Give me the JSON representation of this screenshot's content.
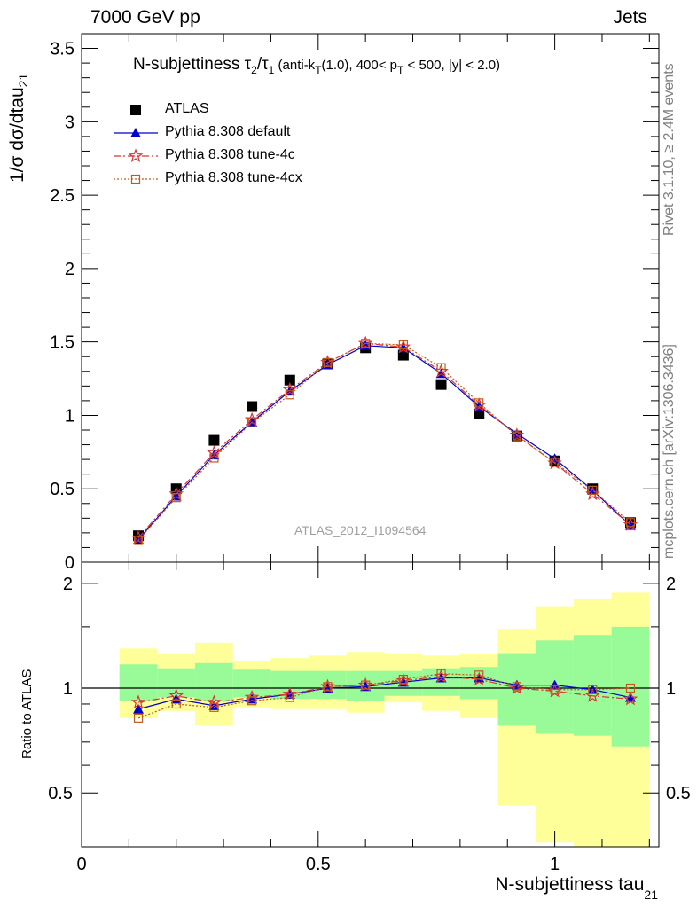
{
  "header": {
    "left": "7000 GeV pp",
    "right": "Jets"
  },
  "side_labels": {
    "rivet": "Rivet 3.1.10, ≥ 2.4M events",
    "mcplots": "mcplots.cern.ch [arXiv:1306.3436]"
  },
  "watermark": "ATLAS_2012_I1094564",
  "title": {
    "main": "N-subjettiness τ",
    "sub1": "2",
    "slash": "/τ",
    "sub2": "1",
    "detail_a": " (anti-k",
    "detail_sub": "T",
    "detail_b": "(1.0), 400< p",
    "detail_sub2": "T",
    "detail_c": " < 500, |y| < 2.0)"
  },
  "axes": {
    "ylabel_main_a": "1/σ dσ/dtau",
    "ylabel_main_sub": "21",
    "ylabel_ratio": "Ratio to ATLAS",
    "xlabel_a": "N-subjettiness tau",
    "xlabel_sub": "21"
  },
  "legend": [
    {
      "label": "ATLAS"
    },
    {
      "label": "Pythia 8.308 default"
    },
    {
      "label": "Pythia 8.308 tune-4c"
    },
    {
      "label": "Pythia 8.308 tune-4cx"
    }
  ],
  "colors": {
    "data": "#000000",
    "default": "#0000cc",
    "tune4c": "#dd3333",
    "tune4cx": "#c05a1c",
    "band_inner": "#98fb98",
    "band_outer": "#ffff99"
  },
  "chart_data": [
    {
      "type": "scatter",
      "panel": "main",
      "xlim": [
        0,
        1.22
      ],
      "ylim": [
        0,
        3.6
      ],
      "x_ticks": [
        0,
        0.5,
        1
      ],
      "y_ticks": [
        0,
        0.5,
        1,
        1.5,
        2,
        2.5,
        3,
        3.5
      ],
      "y_tick_labels": [
        "0",
        "0.5",
        "1",
        "1.5",
        "2",
        "2.5",
        "3",
        "3.5"
      ],
      "x": [
        0.12,
        0.2,
        0.28,
        0.36,
        0.44,
        0.52,
        0.6,
        0.68,
        0.76,
        0.84,
        0.92,
        1.0,
        1.08,
        1.16
      ],
      "series": [
        {
          "name": "ATLAS",
          "style": "data",
          "values": [
            0.18,
            0.5,
            0.83,
            1.06,
            1.24,
            1.35,
            1.46,
            1.41,
            1.21,
            1.01,
            0.86,
            0.69,
            0.5,
            0.27
          ]
        },
        {
          "name": "Pythia 8.308 default",
          "style": "default",
          "values": [
            0.155,
            0.45,
            0.73,
            0.955,
            1.165,
            1.345,
            1.475,
            1.46,
            1.285,
            1.06,
            0.875,
            0.705,
            0.49,
            0.25
          ]
        },
        {
          "name": "Pythia 8.308 tune-4c",
          "style": "tune4c",
          "values": [
            0.165,
            0.465,
            0.745,
            0.97,
            1.175,
            1.36,
            1.49,
            1.465,
            1.3,
            1.07,
            0.865,
            0.675,
            0.465,
            0.255
          ]
        },
        {
          "name": "Pythia 8.308 tune-4cx",
          "style": "tune4cx",
          "values": [
            0.148,
            0.44,
            0.71,
            0.95,
            1.14,
            1.36,
            1.49,
            1.48,
            1.325,
            1.085,
            0.86,
            0.68,
            0.49,
            0.27
          ]
        }
      ]
    },
    {
      "type": "line",
      "panel": "ratio",
      "xlim": [
        0,
        1.22
      ],
      "ylim": [
        0.35,
        2.3
      ],
      "y_ticks": [
        0.5,
        1,
        2
      ],
      "y_tick_labels": [
        "0.5",
        "1",
        "2"
      ],
      "x_tick_labels": [
        "0",
        "0.5",
        "1"
      ],
      "bins": [
        [
          0.08,
          0.16
        ],
        [
          0.16,
          0.24
        ],
        [
          0.24,
          0.32
        ],
        [
          0.32,
          0.4
        ],
        [
          0.4,
          0.48
        ],
        [
          0.48,
          0.56
        ],
        [
          0.56,
          0.64
        ],
        [
          0.64,
          0.72
        ],
        [
          0.72,
          0.8
        ],
        [
          0.8,
          0.88
        ],
        [
          0.88,
          0.96
        ],
        [
          0.96,
          1.04
        ],
        [
          1.04,
          1.12
        ],
        [
          1.12,
          1.2
        ]
      ],
      "band_outer": [
        [
          0.82,
          1.3
        ],
        [
          0.86,
          1.26
        ],
        [
          0.78,
          1.35
        ],
        [
          0.88,
          1.2
        ],
        [
          0.87,
          1.22
        ],
        [
          0.87,
          1.24
        ],
        [
          0.85,
          1.27
        ],
        [
          0.91,
          1.26
        ],
        [
          0.86,
          1.24
        ],
        [
          0.82,
          1.25
        ],
        [
          0.46,
          1.48
        ],
        [
          0.36,
          1.72
        ],
        [
          0.33,
          1.8
        ],
        [
          0.33,
          1.88
        ]
      ],
      "band_inner": [
        [
          0.92,
          1.17
        ],
        [
          0.94,
          1.14
        ],
        [
          0.92,
          1.18
        ],
        [
          0.94,
          1.13
        ],
        [
          0.93,
          1.12
        ],
        [
          0.93,
          1.12
        ],
        [
          0.92,
          1.12
        ],
        [
          0.95,
          1.12
        ],
        [
          0.95,
          1.14
        ],
        [
          0.93,
          1.15
        ],
        [
          0.78,
          1.26
        ],
        [
          0.74,
          1.37
        ],
        [
          0.73,
          1.42
        ],
        [
          0.68,
          1.5
        ]
      ],
      "series": [
        {
          "name": "Pythia 8.308 default",
          "style": "default",
          "values": [
            0.87,
            0.93,
            0.89,
            0.93,
            0.96,
            1.0,
            1.01,
            1.04,
            1.07,
            1.07,
            1.02,
            1.02,
            0.99,
            0.94
          ]
        },
        {
          "name": "Pythia 8.308 tune-4c",
          "style": "tune4c",
          "values": [
            0.91,
            0.95,
            0.91,
            0.94,
            0.96,
            1.01,
            1.02,
            1.05,
            1.08,
            1.06,
            1.0,
            0.98,
            0.95,
            0.93
          ]
        },
        {
          "name": "Pythia 8.308 tune-4cx",
          "style": "tune4cx",
          "values": [
            0.82,
            0.9,
            0.88,
            0.92,
            0.94,
            1.01,
            1.02,
            1.06,
            1.1,
            1.09,
            1.01,
            0.99,
            0.99,
            1.0
          ]
        }
      ]
    }
  ]
}
